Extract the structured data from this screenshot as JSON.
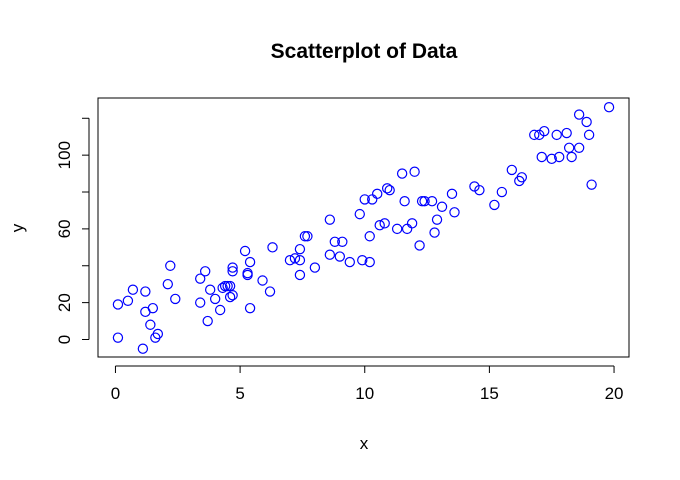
{
  "chart_data": {
    "type": "scatter",
    "title": "Scatterplot of Data",
    "xlabel": "x",
    "ylabel": "y",
    "xlim": [
      -0.7,
      20.6
    ],
    "ylim": [
      -9.5,
      131
    ],
    "x_ticks": [
      0,
      5,
      10,
      15,
      20
    ],
    "y_ticks": [
      0,
      20,
      40,
      60,
      80,
      100,
      120
    ],
    "y_tick_labels": [
      "0",
      "20",
      "",
      "60",
      "",
      "100",
      ""
    ],
    "grid": false,
    "legend": "none",
    "point_color": "#0000ff",
    "points": [
      {
        "x": 0.1,
        "y": 1
      },
      {
        "x": 0.1,
        "y": 19
      },
      {
        "x": 0.5,
        "y": 21
      },
      {
        "x": 0.7,
        "y": 27
      },
      {
        "x": 1.1,
        "y": -5
      },
      {
        "x": 1.2,
        "y": 15
      },
      {
        "x": 1.2,
        "y": 26
      },
      {
        "x": 1.4,
        "y": 8
      },
      {
        "x": 1.5,
        "y": 17
      },
      {
        "x": 1.6,
        "y": 1
      },
      {
        "x": 1.7,
        "y": 3
      },
      {
        "x": 2.1,
        "y": 30
      },
      {
        "x": 2.2,
        "y": 40
      },
      {
        "x": 2.4,
        "y": 22
      },
      {
        "x": 3.4,
        "y": 20
      },
      {
        "x": 3.4,
        "y": 33
      },
      {
        "x": 3.6,
        "y": 37
      },
      {
        "x": 3.7,
        "y": 10
      },
      {
        "x": 3.8,
        "y": 27
      },
      {
        "x": 4.0,
        "y": 22
      },
      {
        "x": 4.2,
        "y": 16
      },
      {
        "x": 4.3,
        "y": 28
      },
      {
        "x": 4.4,
        "y": 29
      },
      {
        "x": 4.5,
        "y": 29
      },
      {
        "x": 4.6,
        "y": 29
      },
      {
        "x": 4.6,
        "y": 23
      },
      {
        "x": 4.7,
        "y": 24
      },
      {
        "x": 4.7,
        "y": 37
      },
      {
        "x": 4.7,
        "y": 39
      },
      {
        "x": 5.2,
        "y": 48
      },
      {
        "x": 5.3,
        "y": 35
      },
      {
        "x": 5.3,
        "y": 36
      },
      {
        "x": 5.4,
        "y": 17
      },
      {
        "x": 5.4,
        "y": 42
      },
      {
        "x": 5.9,
        "y": 32
      },
      {
        "x": 6.2,
        "y": 26
      },
      {
        "x": 6.3,
        "y": 50
      },
      {
        "x": 7.0,
        "y": 43
      },
      {
        "x": 7.2,
        "y": 44
      },
      {
        "x": 7.4,
        "y": 43
      },
      {
        "x": 7.4,
        "y": 49
      },
      {
        "x": 7.4,
        "y": 35
      },
      {
        "x": 7.6,
        "y": 56
      },
      {
        "x": 7.7,
        "y": 56
      },
      {
        "x": 8.0,
        "y": 39
      },
      {
        "x": 8.6,
        "y": 46
      },
      {
        "x": 8.6,
        "y": 65
      },
      {
        "x": 8.8,
        "y": 53
      },
      {
        "x": 9.0,
        "y": 45
      },
      {
        "x": 9.1,
        "y": 53
      },
      {
        "x": 9.4,
        "y": 42
      },
      {
        "x": 9.8,
        "y": 68
      },
      {
        "x": 9.9,
        "y": 43
      },
      {
        "x": 10.0,
        "y": 76
      },
      {
        "x": 10.2,
        "y": 42
      },
      {
        "x": 10.2,
        "y": 56
      },
      {
        "x": 10.3,
        "y": 76
      },
      {
        "x": 10.5,
        "y": 79
      },
      {
        "x": 10.6,
        "y": 62
      },
      {
        "x": 10.8,
        "y": 63
      },
      {
        "x": 10.9,
        "y": 82
      },
      {
        "x": 11.0,
        "y": 81
      },
      {
        "x": 11.3,
        "y": 60
      },
      {
        "x": 11.5,
        "y": 90
      },
      {
        "x": 11.6,
        "y": 75
      },
      {
        "x": 11.7,
        "y": 60
      },
      {
        "x": 11.9,
        "y": 63
      },
      {
        "x": 12.0,
        "y": 91
      },
      {
        "x": 12.2,
        "y": 51
      },
      {
        "x": 12.3,
        "y": 75
      },
      {
        "x": 12.4,
        "y": 75
      },
      {
        "x": 12.7,
        "y": 75
      },
      {
        "x": 12.8,
        "y": 58
      },
      {
        "x": 12.9,
        "y": 65
      },
      {
        "x": 13.1,
        "y": 72
      },
      {
        "x": 13.5,
        "y": 79
      },
      {
        "x": 13.6,
        "y": 69
      },
      {
        "x": 14.4,
        "y": 83
      },
      {
        "x": 14.6,
        "y": 81
      },
      {
        "x": 15.2,
        "y": 73
      },
      {
        "x": 15.5,
        "y": 80
      },
      {
        "x": 15.9,
        "y": 92
      },
      {
        "x": 16.2,
        "y": 86
      },
      {
        "x": 16.3,
        "y": 88
      },
      {
        "x": 16.8,
        "y": 111
      },
      {
        "x": 17.0,
        "y": 111
      },
      {
        "x": 17.1,
        "y": 99
      },
      {
        "x": 17.2,
        "y": 113
      },
      {
        "x": 17.5,
        "y": 98
      },
      {
        "x": 17.7,
        "y": 111
      },
      {
        "x": 17.8,
        "y": 99
      },
      {
        "x": 18.1,
        "y": 112
      },
      {
        "x": 18.2,
        "y": 104
      },
      {
        "x": 18.3,
        "y": 99
      },
      {
        "x": 18.6,
        "y": 104
      },
      {
        "x": 18.6,
        "y": 122
      },
      {
        "x": 18.9,
        "y": 118
      },
      {
        "x": 19.0,
        "y": 111
      },
      {
        "x": 19.1,
        "y": 84
      },
      {
        "x": 19.8,
        "y": 126
      }
    ]
  }
}
